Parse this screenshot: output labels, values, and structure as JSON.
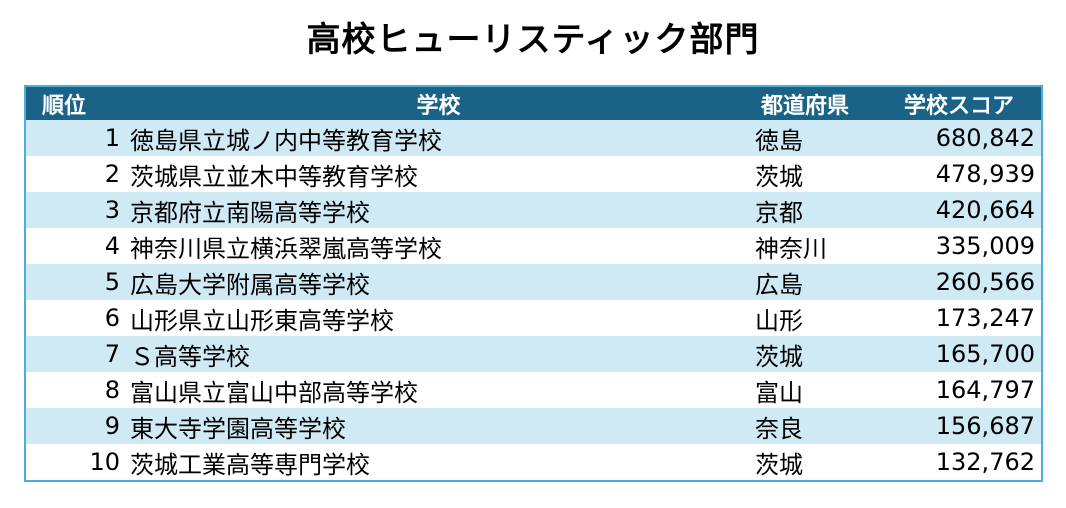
{
  "title": "高校ヒューリスティック部門",
  "header": {
    "rank": "順位",
    "school": "学校",
    "prefecture": "都道府県",
    "score": "学校スコア"
  },
  "rows": [
    {
      "rank": "1",
      "school": "徳島県立城ノ内中等教育学校",
      "prefecture": "徳島",
      "score": "680,842"
    },
    {
      "rank": "2",
      "school": "茨城県立並木中等教育学校",
      "prefecture": "茨城",
      "score": "478,939"
    },
    {
      "rank": "3",
      "school": "京都府立南陽高等学校",
      "prefecture": "京都",
      "score": "420,664"
    },
    {
      "rank": "4",
      "school": "神奈川県立横浜翠嵐高等学校",
      "prefecture": "神奈川",
      "score": "335,009"
    },
    {
      "rank": "5",
      "school": "広島大学附属高等学校",
      "prefecture": "広島",
      "score": "260,566"
    },
    {
      "rank": "6",
      "school": "山形県立山形東高等学校",
      "prefecture": "山形",
      "score": "173,247"
    },
    {
      "rank": "7",
      "school": "Ｓ高等学校",
      "prefecture": "茨城",
      "score": "165,700"
    },
    {
      "rank": "8",
      "school": "富山県立富山中部高等学校",
      "prefecture": "富山",
      "score": "164,797"
    },
    {
      "rank": "9",
      "school": "東大寺学園高等学校",
      "prefecture": "奈良",
      "score": "156,687"
    },
    {
      "rank": "10",
      "school": "茨城工業高等専門学校",
      "prefecture": "茨城",
      "score": "132,762"
    }
  ],
  "colors": {
    "header_bg": "#1a6386",
    "row_stripe": "#cfe9f5",
    "border": "#4aaed6"
  }
}
